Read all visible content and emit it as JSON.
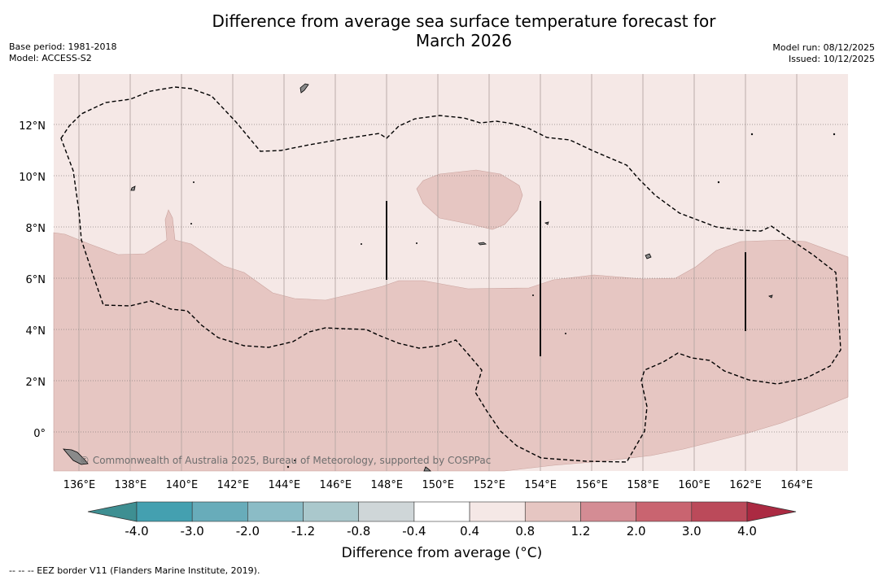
{
  "title_line1": "Difference from average sea surface temperature forecast for",
  "title_line2": "March 2026",
  "base_period": "Base period: 1981-2018",
  "model": "Model: ACCESS-S2",
  "model_run": "Model run: 08/12/2025",
  "issued": "Issued: 10/12/2025",
  "lat_labels": [
    "12°N",
    "10°N",
    "8°N",
    "6°N",
    "4°N",
    "2°N",
    "0°"
  ],
  "lat_values": [
    12,
    10,
    8,
    6,
    4,
    2,
    0
  ],
  "lon_labels": [
    "136°E",
    "138°E",
    "140°E",
    "142°E",
    "144°E",
    "146°E",
    "148°E",
    "150°E",
    "152°E",
    "154°E",
    "156°E",
    "158°E",
    "160°E",
    "162°E",
    "164°E"
  ],
  "lon_values": [
    136,
    138,
    140,
    142,
    144,
    146,
    148,
    150,
    152,
    154,
    156,
    158,
    160,
    162,
    164
  ],
  "extent": {
    "lon_min": 135,
    "lon_max": 166,
    "lat_min": -1.5,
    "lat_max": 14
  },
  "copyright": "© Commonwealth of Australia 2025, Bureau of Meteorology, supported by COSPPac",
  "colorbar": {
    "title": "Difference from average (°C)",
    "ticks": [
      "-4.0",
      "-3.0",
      "-2.0",
      "-1.2",
      "-0.8",
      "-0.4",
      "0.4",
      "0.8",
      "1.2",
      "2.0",
      "3.0",
      "4.0"
    ],
    "colors": [
      "#44a0b0",
      "#68acba",
      "#8bbcc6",
      "#aac8cc",
      "#cfd6d8",
      "#ffffff",
      "#f5e8e6",
      "#e6c6c2",
      "#d48c94",
      "#c96470",
      "#bb4a5a"
    ],
    "under_color": "#3e8f92",
    "over_color": "#ab2a42"
  },
  "footnote": "-- -- -- EEZ border V11 (Flanders Marine Institute, 2019).",
  "colors": {
    "background_anomaly": "#f5e8e6",
    "warm_anomaly": "#e6c6c2",
    "land": "#8a8a8a",
    "eez_line": "#000000"
  }
}
